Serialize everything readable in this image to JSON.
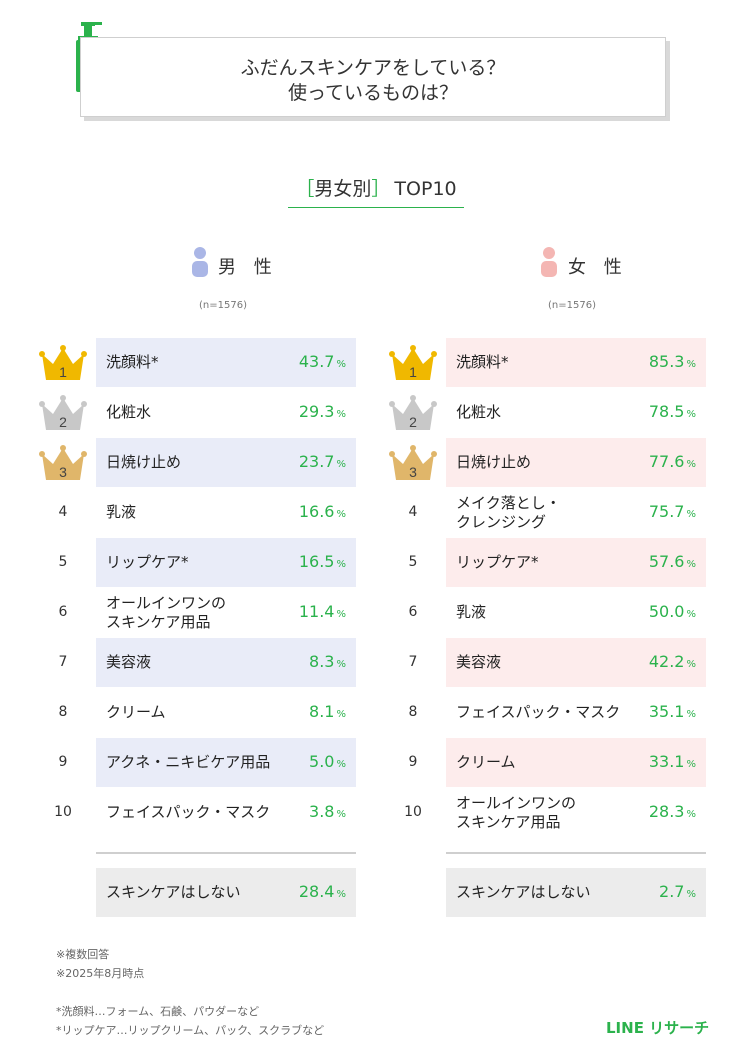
{
  "header": {
    "line1": "ふだんスキンケアをしている？",
    "line2": "使っているものは？"
  },
  "subtitle": {
    "open": "［",
    "text": "男女別",
    "close": "］",
    "suffix": "TOP10"
  },
  "colors": {
    "accent": "#2bb24c",
    "male_bg": "#e9ecf8",
    "female_bg": "#fdecec",
    "male_icon": "#aab6e6",
    "female_icon": "#f4b6b3",
    "gold": "#f0b800",
    "silver": "#c8c8c8",
    "bronze": "#e0b66a"
  },
  "icons": {
    "bottle": "pump-bottle-icon",
    "male": "person-icon",
    "female": "person-icon",
    "crown": "crown-icon"
  },
  "chart_data": [
    {
      "type": "table",
      "group": "男 性",
      "n_note": "(n=1576)",
      "unit": "%",
      "ranks": [
        "1",
        "2",
        "3",
        "4",
        "5",
        "6",
        "7",
        "8",
        "9",
        "10"
      ],
      "categories": [
        "洗顔料*",
        "化粧水",
        "日焼け止め",
        "乳液",
        "リップケア*",
        "オールインワンの\nスキンケア用品",
        "美容液",
        "クリーム",
        "アクネ・ニキビケア用品",
        "フェイスパック・マスク"
      ],
      "values": [
        43.7,
        29.3,
        23.7,
        16.6,
        16.5,
        11.4,
        8.3,
        8.1,
        5.0,
        3.8
      ],
      "value_labels": [
        "43.7",
        "29.3",
        "23.7",
        "16.6",
        "16.5",
        "11.4",
        "8.3",
        "8.1",
        "5.0",
        "3.8"
      ],
      "extra": {
        "label": "スキンケアはしない",
        "value": 28.4,
        "value_label": "28.4"
      }
    },
    {
      "type": "table",
      "group": "女 性",
      "n_note": "(n=1576)",
      "unit": "%",
      "ranks": [
        "1",
        "2",
        "3",
        "4",
        "5",
        "6",
        "7",
        "8",
        "9",
        "10"
      ],
      "categories": [
        "洗顔料*",
        "化粧水",
        "日焼け止め",
        "メイク落とし・\nクレンジング",
        "リップケア*",
        "乳液",
        "美容液",
        "フェイスパック・マスク",
        "クリーム",
        "オールインワンの\nスキンケア用品"
      ],
      "values": [
        85.3,
        78.5,
        77.6,
        75.7,
        57.6,
        50.0,
        42.2,
        35.1,
        33.1,
        28.3
      ],
      "value_labels": [
        "85.3",
        "78.5",
        "77.6",
        "75.7",
        "57.6",
        "50.0",
        "42.2",
        "35.1",
        "33.1",
        "28.3"
      ],
      "extra": {
        "label": "スキンケアはしない",
        "value": 2.7,
        "value_label": "2.7"
      }
    }
  ],
  "footnotes": {
    "note1": "※複数回答",
    "note2": "※2025年8月時点",
    "note3": "*洗顔料…フォーム、石鹸、パウダーなど",
    "note4": "*リップケア…リップクリーム、パック、スクラブなど"
  },
  "logo": "LINE リサーチ"
}
